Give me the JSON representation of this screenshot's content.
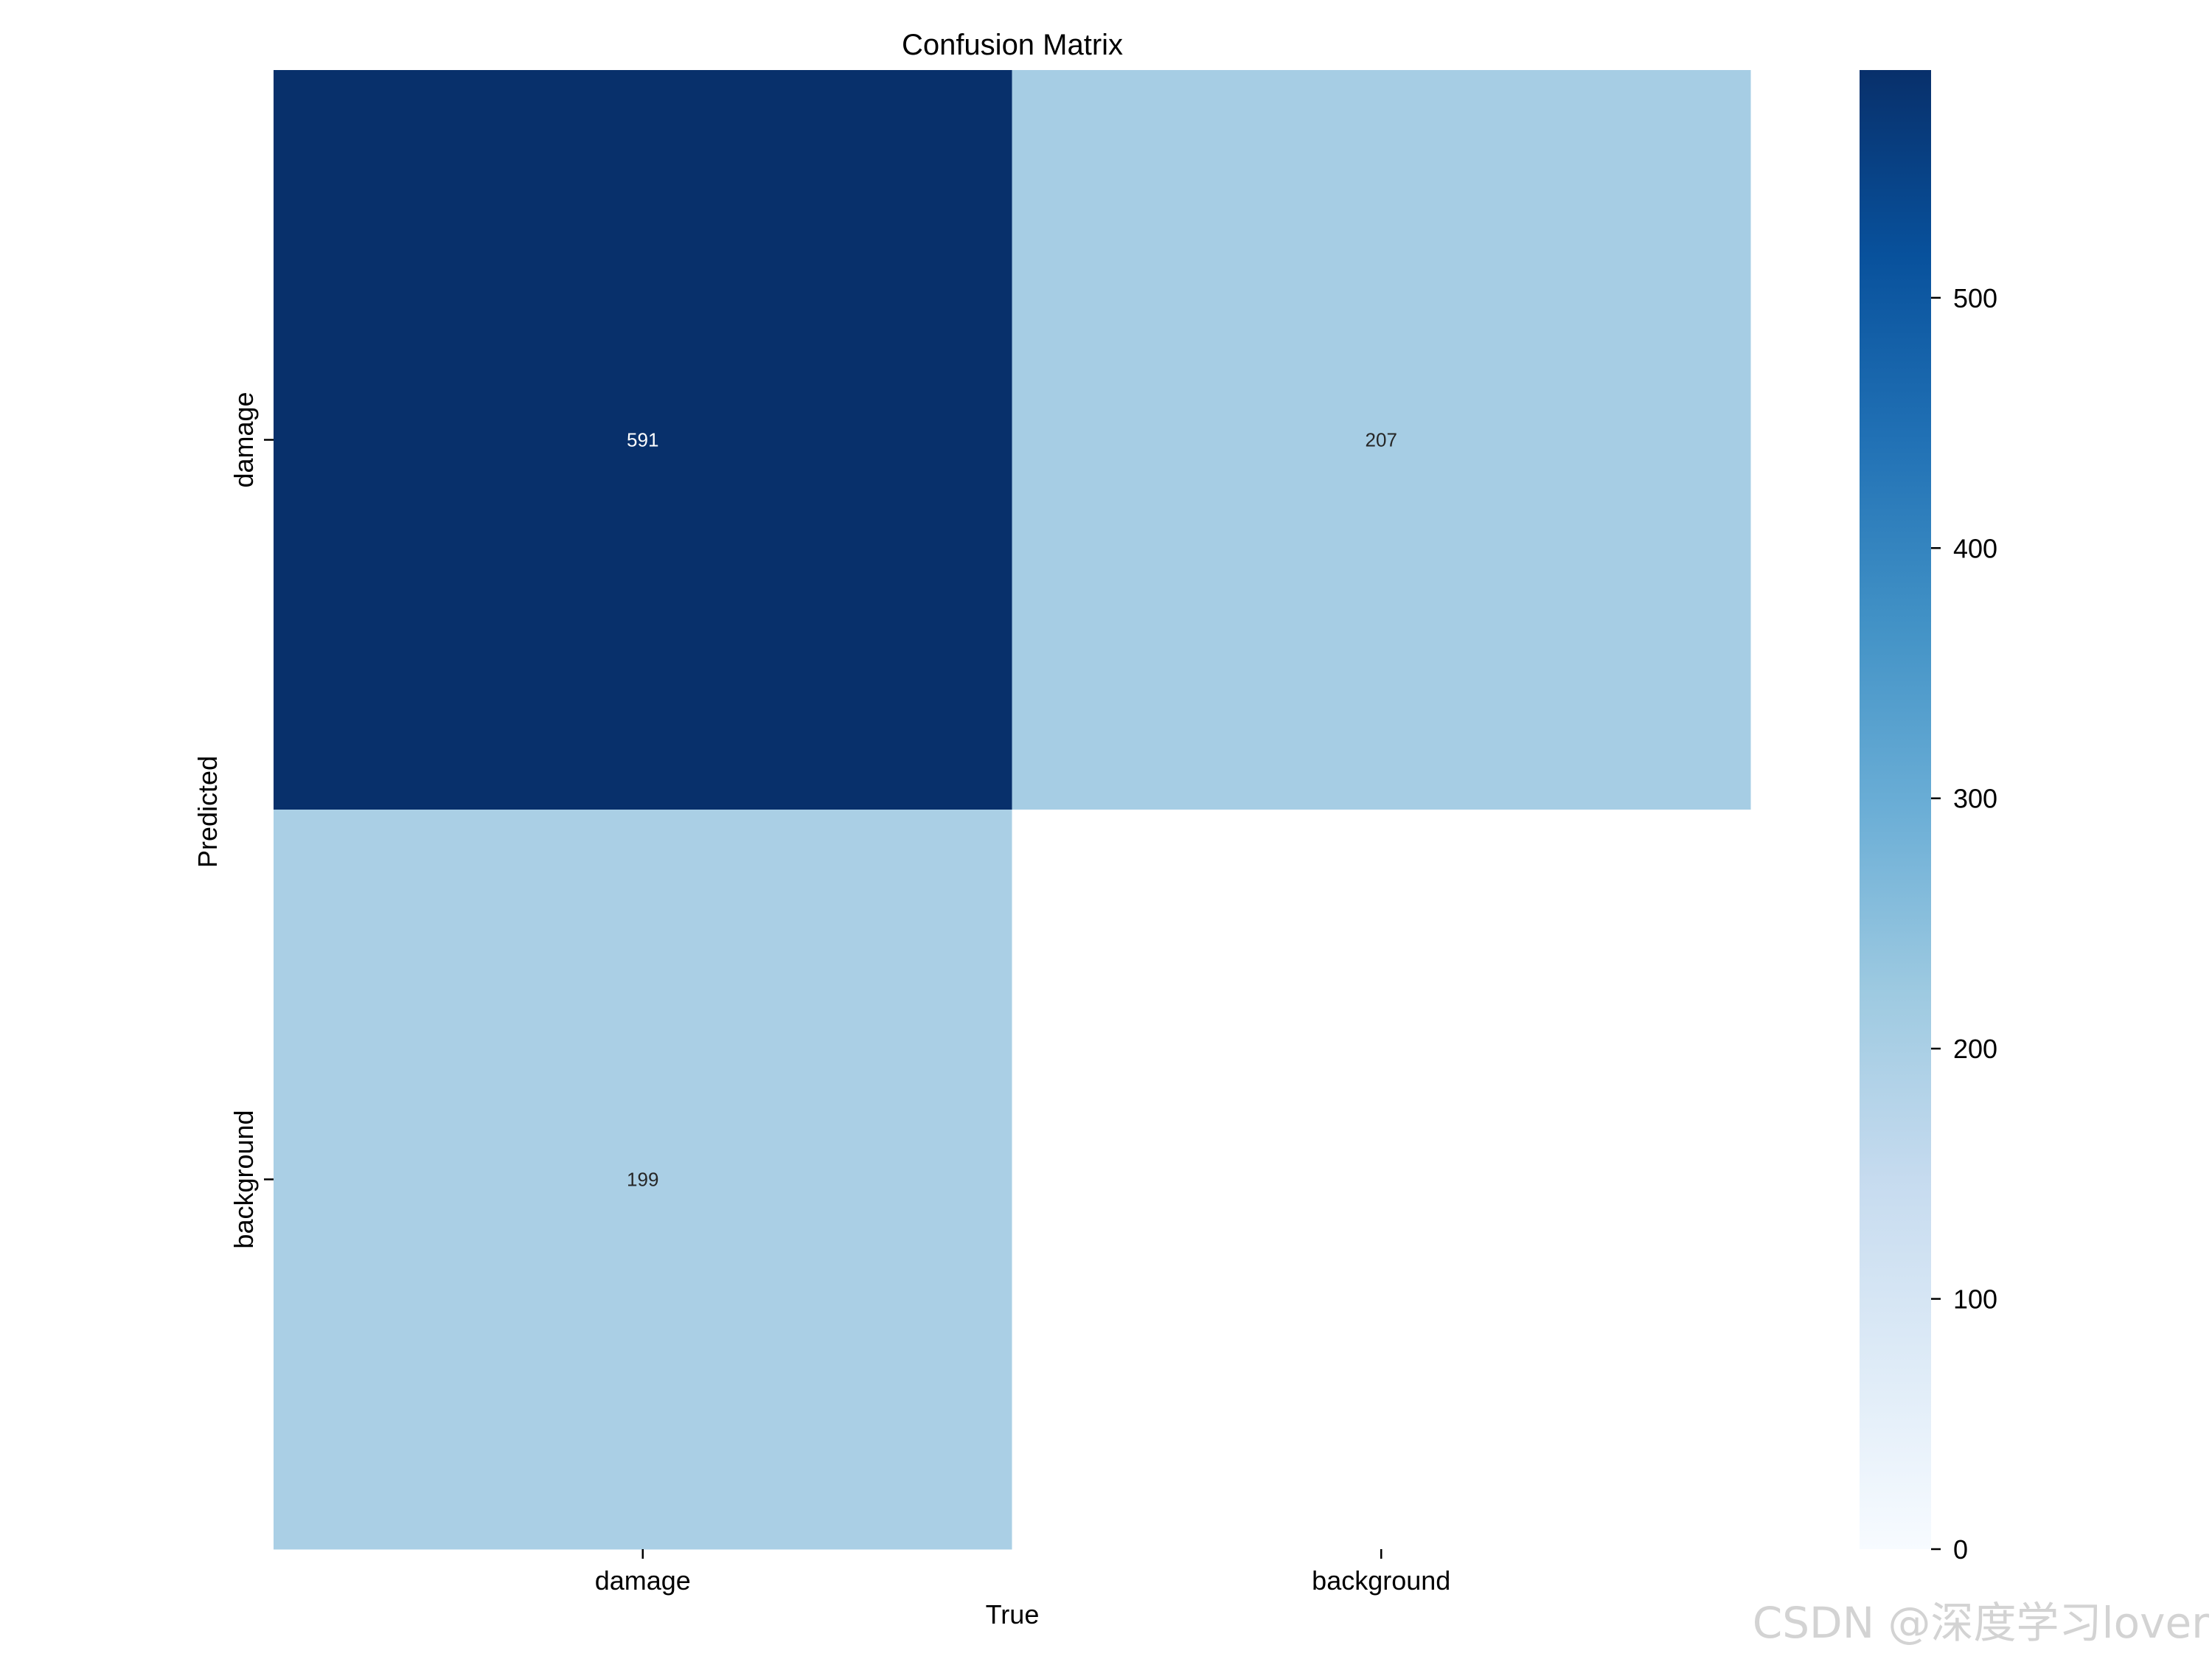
{
  "chart_data": {
    "type": "heatmap",
    "title": "Confusion Matrix",
    "xlabel": "True",
    "ylabel": "Predicted",
    "x_categories": [
      "damage",
      "background"
    ],
    "y_categories": [
      "damage",
      "background"
    ],
    "values": [
      [
        591,
        207
      ],
      [
        199,
        null
      ]
    ],
    "cell_labels": [
      [
        "591",
        "207"
      ],
      [
        "199",
        ""
      ]
    ],
    "colormap": "Blues",
    "colorbar": {
      "range": [
        0,
        591
      ],
      "ticks": [
        0,
        100,
        200,
        300,
        400,
        500
      ],
      "tick_labels": [
        "0",
        "100",
        "200",
        "300",
        "400",
        "500"
      ]
    }
  },
  "watermark": "CSDN @深度学习lover"
}
